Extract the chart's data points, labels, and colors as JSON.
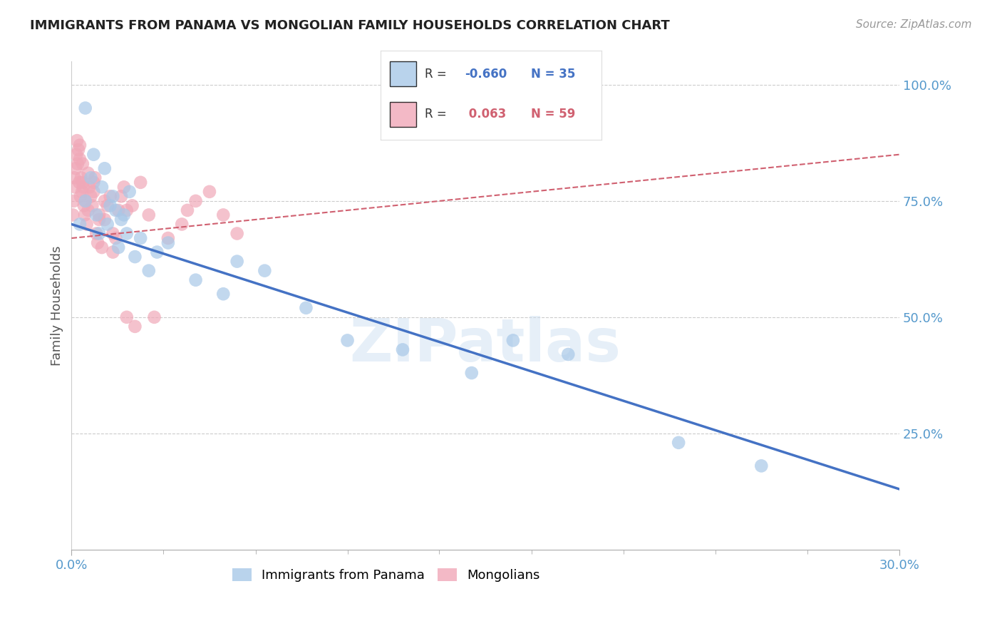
{
  "title": "IMMIGRANTS FROM PANAMA VS MONGOLIAN FAMILY HOUSEHOLDS CORRELATION CHART",
  "source": "Source: ZipAtlas.com",
  "xlabel_ticks": [
    "0.0%",
    "",
    "",
    "",
    "",
    "",
    "",
    "",
    "",
    "30.0%"
  ],
  "xlabel_vals": [
    0.0,
    3.33,
    6.67,
    10.0,
    13.33,
    16.67,
    20.0,
    23.33,
    26.67,
    30.0
  ],
  "ylabel_ticks": [
    "25.0%",
    "50.0%",
    "75.0%",
    "100.0%"
  ],
  "ylabel_vals": [
    25.0,
    50.0,
    75.0,
    100.0
  ],
  "xlim": [
    0.0,
    30.0
  ],
  "ylim": [
    0.0,
    105.0
  ],
  "blue_label": "Immigrants from Panama",
  "pink_label": "Mongolians",
  "blue_R": -0.66,
  "blue_N": 35,
  "pink_R": 0.063,
  "pink_N": 59,
  "blue_color": "#A8C8E8",
  "pink_color": "#F0A8B8",
  "blue_line_color": "#4472C4",
  "pink_line_color": "#D06070",
  "title_color": "#222222",
  "source_color": "#999999",
  "tick_color": "#5599CC",
  "watermark_text": "ZIPatlas",
  "blue_x": [
    0.3,
    0.5,
    0.5,
    0.7,
    0.8,
    0.9,
    1.0,
    1.1,
    1.2,
    1.3,
    1.4,
    1.5,
    1.6,
    1.7,
    1.8,
    1.9,
    2.0,
    2.1,
    2.3,
    2.5,
    2.8,
    3.1,
    3.5,
    4.5,
    5.5,
    6.0,
    7.0,
    8.5,
    10.0,
    12.0,
    14.5,
    16.0,
    18.0,
    22.0,
    25.0
  ],
  "blue_y": [
    70,
    95,
    75,
    80,
    85,
    72,
    68,
    78,
    82,
    70,
    74,
    76,
    73,
    65,
    71,
    72,
    68,
    77,
    63,
    67,
    60,
    64,
    66,
    58,
    55,
    62,
    60,
    52,
    45,
    43,
    38,
    45,
    42,
    23,
    18
  ],
  "pink_x": [
    0.05,
    0.08,
    0.1,
    0.12,
    0.15,
    0.18,
    0.2,
    0.22,
    0.25,
    0.28,
    0.3,
    0.32,
    0.35,
    0.38,
    0.4,
    0.42,
    0.45,
    0.48,
    0.5,
    0.55,
    0.6,
    0.65,
    0.7,
    0.75,
    0.8,
    0.85,
    0.9,
    0.95,
    1.0,
    1.1,
    1.2,
    1.3,
    1.4,
    1.5,
    1.6,
    1.7,
    1.8,
    1.9,
    2.0,
    2.2,
    2.5,
    2.8,
    3.0,
    3.5,
    4.0,
    4.5,
    5.0,
    5.5,
    6.0,
    2.3,
    0.3,
    0.4,
    0.6,
    0.8,
    1.0,
    1.2,
    1.5,
    2.0,
    4.2
  ],
  "pink_y": [
    72,
    75,
    80,
    78,
    82,
    85,
    88,
    83,
    86,
    79,
    84,
    76,
    80,
    77,
    83,
    78,
    74,
    72,
    75,
    70,
    73,
    78,
    76,
    74,
    79,
    80,
    68,
    66,
    72,
    65,
    71,
    74,
    76,
    68,
    67,
    73,
    76,
    78,
    73,
    74,
    79,
    72,
    50,
    67,
    70,
    75,
    77,
    72,
    68,
    48,
    87,
    79,
    81,
    77,
    71,
    75,
    64,
    50,
    73
  ],
  "blue_line_x0": 0.0,
  "blue_line_y0": 70.0,
  "blue_line_x1": 30.0,
  "blue_line_y1": 13.0,
  "pink_line_x0": 0.0,
  "pink_line_y0": 67.0,
  "pink_line_x1": 30.0,
  "pink_line_y1": 85.0
}
